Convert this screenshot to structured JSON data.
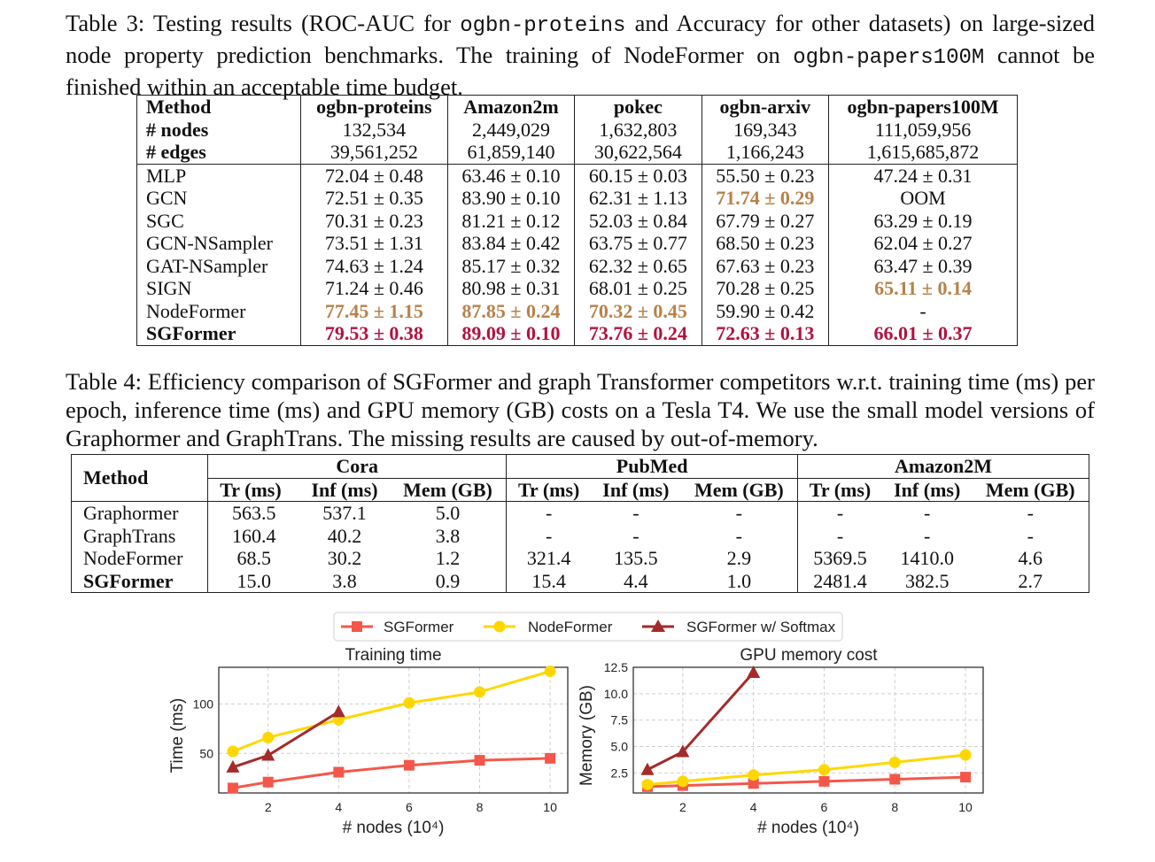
{
  "table3": {
    "caption": {
      "p1": "Table 3: Testing results (ROC-AUC for ",
      "code1": "ogbn-proteins",
      "p2": " and Accuracy for other datasets) on large-sized node property prediction benchmarks. The training of NodeFormer on ",
      "code2": "ogbn-papers100M",
      "p3": " cannot be finished within an acceptable time budget."
    },
    "columns": [
      "Method",
      "ogbn-proteins",
      "Amazon2m",
      "pokec",
      "ogbn-arxiv",
      "ogbn-papers100M"
    ],
    "stats": [
      {
        "label": "# nodes",
        "cells": [
          "132,534",
          "2,449,029",
          "1,632,803",
          "169,343",
          "111,059,956"
        ]
      },
      {
        "label": "# edges",
        "cells": [
          "39,561,252",
          "61,859,140",
          "30,622,564",
          "1,166,243",
          "1,615,685,872"
        ]
      }
    ],
    "rows": [
      {
        "method": "MLP",
        "cells": [
          "72.04 ± 0.48",
          "63.46 ± 0.10",
          "60.15 ± 0.03",
          "55.50 ± 0.23",
          "47.24 ± 0.31"
        ],
        "rank": [
          "",
          "",
          "",
          "",
          ""
        ]
      },
      {
        "method": "GCN",
        "cells": [
          "72.51 ± 0.35",
          "83.90 ± 0.10",
          "62.31 ± 1.13",
          "71.74 ± 0.29",
          "OOM"
        ],
        "rank": [
          "",
          "",
          "",
          "second",
          ""
        ]
      },
      {
        "method": "SGC",
        "cells": [
          "70.31 ± 0.23",
          "81.21 ± 0.12",
          "52.03 ± 0.84",
          "67.79 ± 0.27",
          "63.29 ± 0.19"
        ],
        "rank": [
          "",
          "",
          "",
          "",
          ""
        ]
      },
      {
        "method": "GCN-NSampler",
        "cells": [
          "73.51 ± 1.31",
          "83.84 ± 0.42",
          "63.75 ± 0.77",
          "68.50 ± 0.23",
          "62.04 ± 0.27"
        ],
        "rank": [
          "",
          "",
          "",
          "",
          ""
        ]
      },
      {
        "method": "GAT-NSampler",
        "cells": [
          "74.63 ± 1.24",
          "85.17 ± 0.32",
          "62.32 ± 0.65",
          "67.63 ± 0.23",
          "63.47 ± 0.39"
        ],
        "rank": [
          "",
          "",
          "",
          "",
          ""
        ]
      },
      {
        "method": "SIGN",
        "cells": [
          "71.24 ± 0.46",
          "80.98 ± 0.31",
          "68.01 ± 0.25",
          "70.28 ± 0.25",
          "65.11 ± 0.14"
        ],
        "rank": [
          "",
          "",
          "",
          "",
          "second"
        ]
      },
      {
        "method": "NodeFormer",
        "cells": [
          "77.45 ± 1.15",
          "87.85 ± 0.24",
          "70.32 ± 0.45",
          "59.90 ± 0.42",
          "-"
        ],
        "rank": [
          "second",
          "second",
          "second",
          "",
          ""
        ]
      },
      {
        "method": "SGFormer",
        "cells": [
          "79.53 ± 0.38",
          "89.09 ± 0.10",
          "73.76 ± 0.24",
          "72.63 ± 0.13",
          "66.01 ± 0.37"
        ],
        "rank": [
          "first",
          "first",
          "first",
          "first",
          "first"
        ],
        "bold": true
      }
    ]
  },
  "table4": {
    "caption": "Table 4: Efficiency comparison of SGFormer and graph Transformer competitors w.r.t. training time (ms) per epoch, inference time (ms) and GPU memory (GB) costs on a Tesla T4. We use the small model versions of Graphormer and GraphTrans. The missing results are caused by out-of-memory.",
    "method_header": "Method",
    "groups": [
      "Cora",
      "PubMed",
      "Amazon2M"
    ],
    "subheaders": [
      "Tr (ms)",
      "Inf (ms)",
      "Mem (GB)"
    ],
    "rows": [
      {
        "method": "Graphormer",
        "cells": [
          "563.5",
          "537.1",
          "5.0",
          "-",
          "-",
          "-",
          "-",
          "-",
          "-"
        ]
      },
      {
        "method": "GraphTrans",
        "cells": [
          "160.4",
          "40.2",
          "3.8",
          "-",
          "-",
          "-",
          "-",
          "-",
          "-"
        ]
      },
      {
        "method": "NodeFormer",
        "cells": [
          "68.5",
          "30.2",
          "1.2",
          "321.4",
          "135.5",
          "2.9",
          "5369.5",
          "1410.0",
          "4.6"
        ]
      },
      {
        "method": "SGFormer",
        "cells": [
          "15.0",
          "3.8",
          "0.9",
          "15.4",
          "4.4",
          "1.0",
          "2481.4",
          "382.5",
          "2.7"
        ],
        "bold": true
      }
    ]
  },
  "figure": {
    "legend": [
      "SGFormer",
      "NodeFormer",
      "SGFormer w/ Softmax"
    ],
    "colors": {
      "sgformer": "#f4574a",
      "nodeformer": "#ffd700",
      "softmax": "#a52a2a"
    }
  },
  "chart_data": [
    {
      "type": "line",
      "title": "Training time",
      "xlabel": "# nodes (10⁴)",
      "ylabel": "Time (ms)",
      "xlim": [
        0.6,
        10.5
      ],
      "ylim": [
        10,
        137
      ],
      "xticks": [
        2,
        4,
        6,
        8,
        10
      ],
      "yticks": [
        50,
        100
      ],
      "grid": true,
      "series": [
        {
          "name": "SGFormer",
          "x": [
            1,
            2,
            4,
            6,
            8,
            10
          ],
          "y": [
            15,
            21,
            31,
            38,
            43,
            45
          ]
        },
        {
          "name": "NodeFormer",
          "x": [
            1,
            2,
            4,
            6,
            8,
            10
          ],
          "y": [
            52,
            66,
            84,
            101,
            112,
            133
          ]
        },
        {
          "name": "SGFormer w/ Softmax",
          "x": [
            1,
            2,
            4
          ],
          "y": [
            36,
            48,
            92
          ]
        }
      ]
    },
    {
      "type": "line",
      "title": "GPU memory cost",
      "xlabel": "# nodes (10⁴)",
      "ylabel": "Memory (GB)",
      "xlim": [
        0.6,
        10.5
      ],
      "ylim": [
        0.6,
        12.5
      ],
      "xticks": [
        2,
        4,
        6,
        8,
        10
      ],
      "yticks": [
        2.5,
        5.0,
        7.5,
        10.0,
        12.5
      ],
      "grid": true,
      "series": [
        {
          "name": "SGFormer",
          "x": [
            1,
            2,
            4,
            6,
            8,
            10
          ],
          "y": [
            1.2,
            1.3,
            1.5,
            1.7,
            1.9,
            2.1
          ]
        },
        {
          "name": "NodeFormer",
          "x": [
            1,
            2,
            4,
            6,
            8,
            10
          ],
          "y": [
            1.4,
            1.7,
            2.3,
            2.8,
            3.5,
            4.2
          ]
        },
        {
          "name": "SGFormer w/ Softmax",
          "x": [
            1,
            2,
            4
          ],
          "y": [
            2.8,
            4.5,
            12.0
          ]
        }
      ]
    }
  ]
}
